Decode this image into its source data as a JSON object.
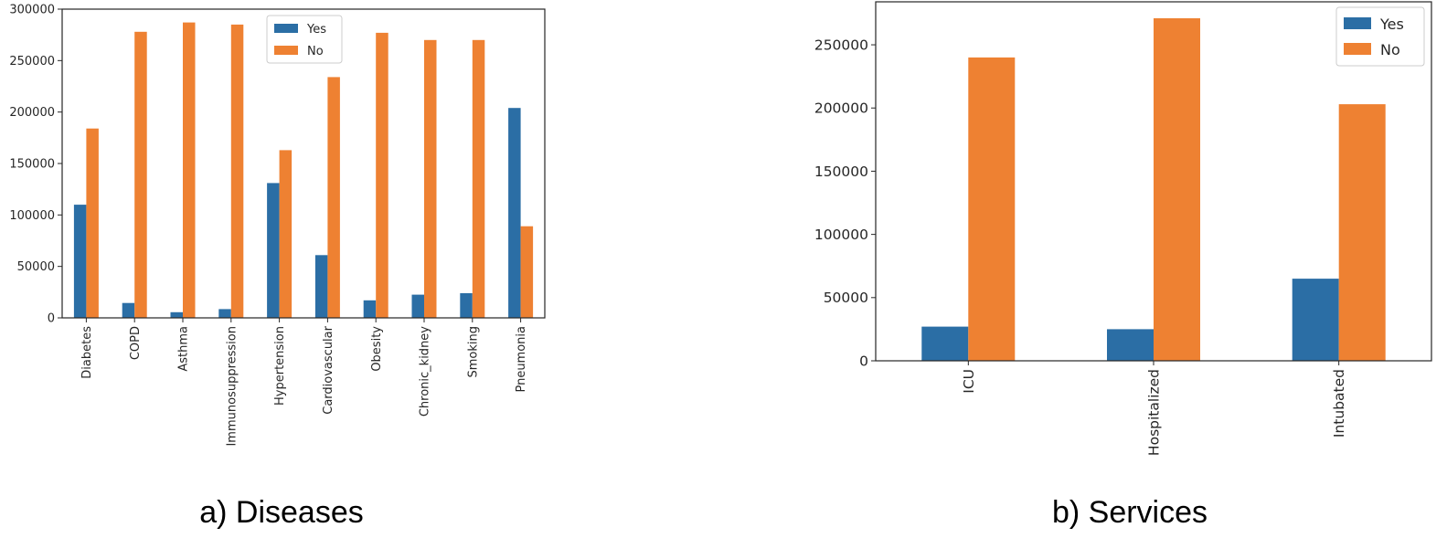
{
  "colors": {
    "yes": "#2b6ea5",
    "no": "#ee8132"
  },
  "captions": [
    "a) Diseases",
    "b) Services"
  ],
  "chart_data": [
    {
      "type": "bar",
      "categories": [
        "Diabetes",
        "COPD",
        "Asthma",
        "Immunosuppression",
        "Hypertension",
        "Cardiovascular",
        "Obesity",
        "Chronic_kidney",
        "Smoking",
        "Pneumonia"
      ],
      "series": [
        {
          "name": "Yes",
          "values": [
            110000,
            14500,
            5500,
            8500,
            131000,
            61000,
            17000,
            22500,
            24000,
            204000
          ]
        },
        {
          "name": "No",
          "values": [
            184000,
            278000,
            287000,
            285000,
            163000,
            234000,
            277000,
            270000,
            270000,
            89000
          ]
        }
      ],
      "yticks": [
        "0",
        "50000",
        "100000",
        "150000",
        "200000",
        "250000",
        "300000"
      ],
      "ylim": [
        0,
        300000
      ],
      "legend": "top-center",
      "grid": false
    },
    {
      "type": "bar",
      "categories": [
        "ICU",
        "Hospitalized",
        "Intubated"
      ],
      "series": [
        {
          "name": "Yes",
          "values": [
            27000,
            25000,
            65000
          ]
        },
        {
          "name": "No",
          "values": [
            240000,
            271000,
            203000
          ]
        }
      ],
      "yticks": [
        "0",
        "50000",
        "100000",
        "150000",
        "200000",
        "250000"
      ],
      "ylim": [
        0,
        284000
      ],
      "legend": "top-right",
      "grid": false
    }
  ]
}
